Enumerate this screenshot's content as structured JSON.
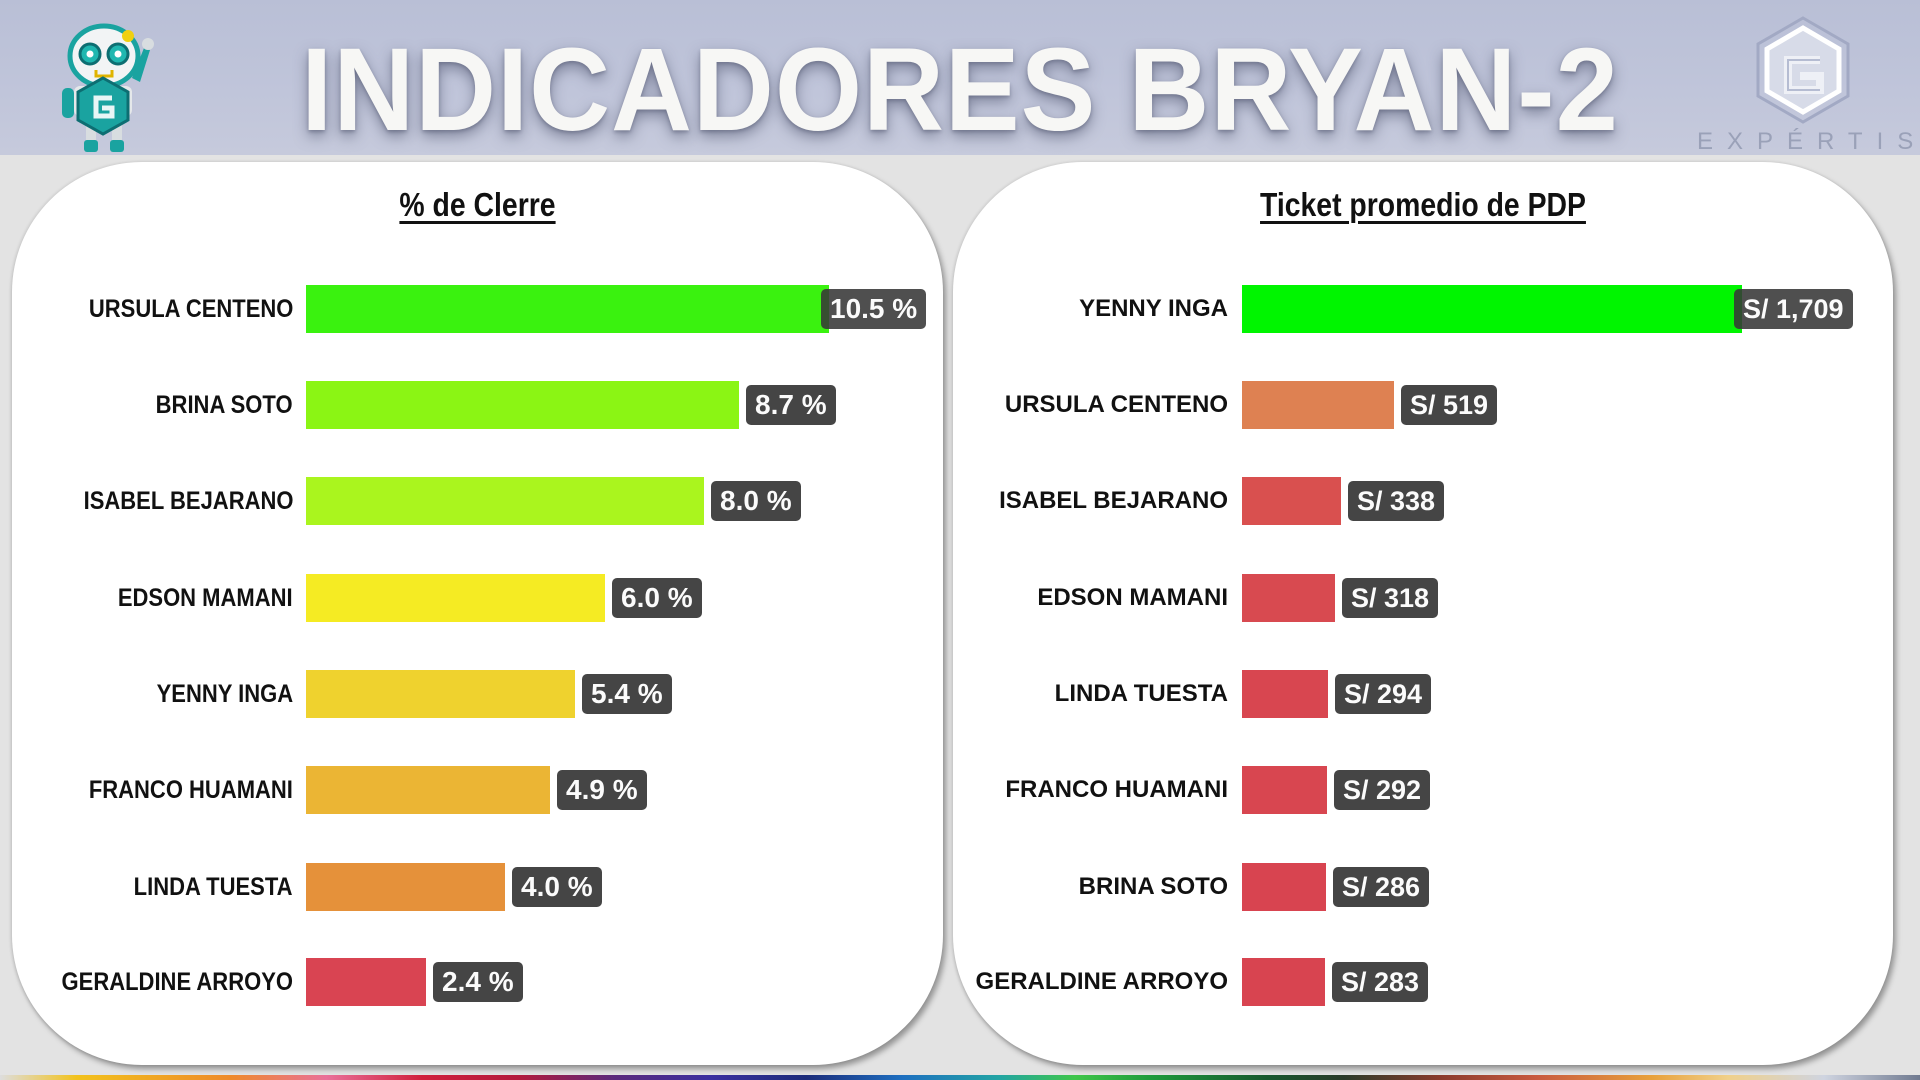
{
  "header": {
    "title": "INDICADORES BRYAN-2",
    "brand_name": "EXPÉRTIS",
    "mascot_icon": "robot-mascot-icon",
    "logo_icon": "hexagon-e-logo-icon",
    "background_color": "#bec3d8"
  },
  "charts": {
    "left": {
      "title": "% de Clerre",
      "rows": [
        {
          "label": "URSULA CENTENO",
          "value": 10.5,
          "display": "10.5 %",
          "color": "#3af20f"
        },
        {
          "label": "BRINA SOTO",
          "value": 8.7,
          "display": "8.7 %",
          "color": "#8bf514"
        },
        {
          "label": "ISABEL BEJARANO",
          "value": 8.0,
          "display": "8.0 %",
          "color": "#aaf51e"
        },
        {
          "label": "EDSON MAMANI",
          "value": 6.0,
          "display": "6.0 %",
          "color": "#f5eb23"
        },
        {
          "label": "YENNY INGA",
          "value": 5.4,
          "display": "5.4 %",
          "color": "#efd22e"
        },
        {
          "label": "FRANCO HUAMANI",
          "value": 4.9,
          "display": "4.9 %",
          "color": "#ebb534"
        },
        {
          "label": "LINDA TUESTA",
          "value": 4.0,
          "display": "4.0 %",
          "color": "#e5913a"
        },
        {
          "label": "GERALDINE ARROYO",
          "value": 2.4,
          "display": "2.4 %",
          "color": "#d94452"
        }
      ]
    },
    "right": {
      "title": "Ticket promedio de PDP",
      "rows": [
        {
          "label": "YENNY INGA",
          "value": 1709,
          "display": "S/ 1,709",
          "color": "#00f500"
        },
        {
          "label": "URSULA CENTENO",
          "value": 519,
          "display": "S/ 519",
          "color": "#de8152"
        },
        {
          "label": "ISABEL BEJARANO",
          "value": 338,
          "display": "S/ 338",
          "color": "#d9504f"
        },
        {
          "label": "EDSON MAMANI",
          "value": 318,
          "display": "S/ 318",
          "color": "#d84a50"
        },
        {
          "label": "LINDA TUESTA",
          "value": 294,
          "display": "S/ 294",
          "color": "#d84650"
        },
        {
          "label": "FRANCO HUAMANI",
          "value": 292,
          "display": "S/ 292",
          "color": "#d84650"
        },
        {
          "label": "BRINA SOTO",
          "value": 286,
          "display": "S/ 286",
          "color": "#d84450"
        },
        {
          "label": "GERALDINE ARROYO",
          "value": 283,
          "display": "S/ 283",
          "color": "#d84450"
        }
      ]
    }
  },
  "chart_data": [
    {
      "type": "bar",
      "orientation": "horizontal",
      "title": "% de Clerre",
      "categories": [
        "URSULA CENTENO",
        "BRINA SOTO",
        "ISABEL BEJARANO",
        "EDSON MAMANI",
        "YENNY INGA",
        "FRANCO HUAMANI",
        "LINDA TUESTA",
        "GERALDINE ARROYO"
      ],
      "values": [
        10.5,
        8.7,
        8.0,
        6.0,
        5.4,
        4.9,
        4.0,
        2.4
      ],
      "value_labels": [
        "10.5 %",
        "8.7 %",
        "8.0 %",
        "6.0 %",
        "5.4 %",
        "4.9 %",
        "4.0 %",
        "2.4 %"
      ],
      "colors": [
        "#3af20f",
        "#8bf514",
        "#aaf51e",
        "#f5eb23",
        "#efd22e",
        "#ebb534",
        "#e5913a",
        "#d94452"
      ],
      "xlabel": "",
      "ylabel": "",
      "grid": false,
      "legend": false
    },
    {
      "type": "bar",
      "orientation": "horizontal",
      "title": "Ticket promedio de PDP",
      "categories": [
        "YENNY INGA",
        "URSULA CENTENO",
        "ISABEL BEJARANO",
        "EDSON MAMANI",
        "LINDA TUESTA",
        "FRANCO HUAMANI",
        "BRINA SOTO",
        "GERALDINE ARROYO"
      ],
      "values": [
        1709,
        519,
        338,
        318,
        294,
        292,
        286,
        283
      ],
      "value_labels": [
        "S/ 1,709",
        "S/ 519",
        "S/ 338",
        "S/ 318",
        "S/ 294",
        "S/ 292",
        "S/ 286",
        "S/ 283"
      ],
      "colors": [
        "#00f500",
        "#de8152",
        "#d9504f",
        "#d84a50",
        "#d84650",
        "#d84650",
        "#d84450",
        "#d84450"
      ],
      "xlabel": "",
      "ylabel": "",
      "grid": false,
      "legend": false
    }
  ]
}
